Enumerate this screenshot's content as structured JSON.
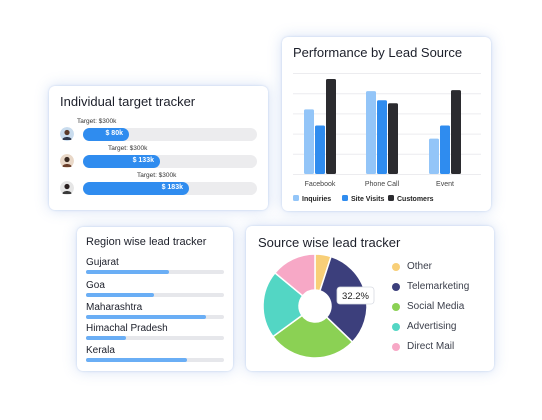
{
  "target_tracker": {
    "title": "Individual target tracker",
    "rows": [
      {
        "target": "Target: $300k",
        "value": "$ 80k",
        "fraction": 0.267
      },
      {
        "target": "Target: $300k",
        "value": "$ 133k",
        "fraction": 0.443
      },
      {
        "target": "Target: $300k",
        "value": "$ 183k",
        "fraction": 0.61
      }
    ]
  },
  "performance": {
    "title": "Performance by Lead Source",
    "chart_data": {
      "type": "bar",
      "categories": [
        "Facebook",
        "Phone Call",
        "Event"
      ],
      "series": [
        {
          "name": "Inquiries",
          "color": "#93c5f8",
          "values": [
            64,
            82,
            35
          ]
        },
        {
          "name": "Site Visits",
          "color": "#2f8cef",
          "values": [
            48,
            73,
            48
          ]
        },
        {
          "name": "Customers",
          "color": "#2b2b2f",
          "values": [
            94,
            70,
            83
          ]
        }
      ],
      "ylim": [
        0,
        100
      ],
      "grid": true,
      "legend": "bottom"
    }
  },
  "region_tracker": {
    "title": "Region wise lead tracker",
    "rows": [
      {
        "label": "Gujarat",
        "fraction": 0.6
      },
      {
        "label": "Goa",
        "fraction": 0.49
      },
      {
        "label": "Maharashtra",
        "fraction": 0.87
      },
      {
        "label": "Himachal Pradesh",
        "fraction": 0.29
      },
      {
        "label": "Kerala",
        "fraction": 0.73
      }
    ]
  },
  "source_tracker": {
    "title": "Source wise lead tracker",
    "chart_data": {
      "type": "pie",
      "donut": true,
      "categories": [
        "Other",
        "Telemarketing",
        "Social Media",
        "Advertising",
        "Direct Mail"
      ],
      "values": [
        5,
        32.2,
        27.8,
        21,
        14
      ],
      "colors": [
        "#f8cf78",
        "#3c3f7c",
        "#8bd154",
        "#53d6c4",
        "#f7a8c6"
      ],
      "annotation": "32.2%"
    }
  }
}
